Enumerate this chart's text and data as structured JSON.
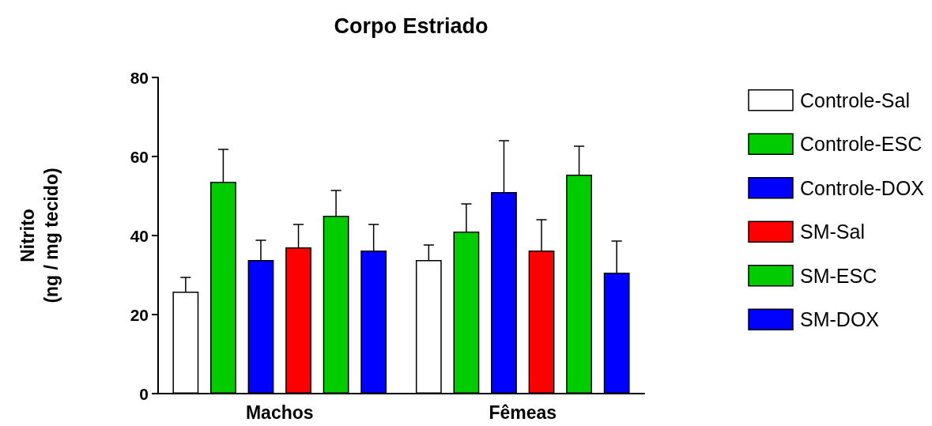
{
  "chart_data": {
    "type": "bar",
    "title": "Corpo Estriado",
    "ylabel": "Nitrito\n(ng / mg tecido)",
    "categories": [
      "Machos",
      "Fêmeas"
    ],
    "series": [
      {
        "name": "Controle-Sal",
        "color": "#ffffff",
        "values": [
          25.8,
          33.8
        ],
        "errors": [
          [
            25.8,
            29.4
          ],
          [
            33.8,
            37.6
          ]
        ]
      },
      {
        "name": "Controle-ESC",
        "color": "#00cc00",
        "values": [
          53.6,
          41
        ],
        "errors": [
          [
            53.6,
            61.8
          ],
          [
            41,
            48
          ]
        ]
      },
      {
        "name": "Controle-DOX",
        "color": "#0000ff",
        "values": [
          33.8,
          51
        ],
        "errors": [
          [
            33.8,
            38.8
          ],
          [
            51,
            64
          ]
        ]
      },
      {
        "name": "SM-Sal",
        "color": "#ff0000",
        "values": [
          37,
          36.2
        ],
        "errors": [
          [
            37,
            42.8
          ],
          [
            36.2,
            44
          ]
        ]
      },
      {
        "name": "SM-ESC",
        "color": "#00cc00",
        "values": [
          45,
          55.4
        ],
        "errors": [
          [
            45,
            51.4
          ],
          [
            55.4,
            62.6
          ]
        ]
      },
      {
        "name": "SM-DOX",
        "color": "#0000ff",
        "values": [
          36.2,
          30.6
        ],
        "errors": [
          [
            36.2,
            42.8
          ],
          [
            30.6,
            38.6
          ]
        ]
      }
    ],
    "ylim": [
      0,
      80
    ],
    "yticks": [
      0,
      20,
      40,
      60,
      80
    ],
    "grid": false,
    "legend": "right"
  }
}
